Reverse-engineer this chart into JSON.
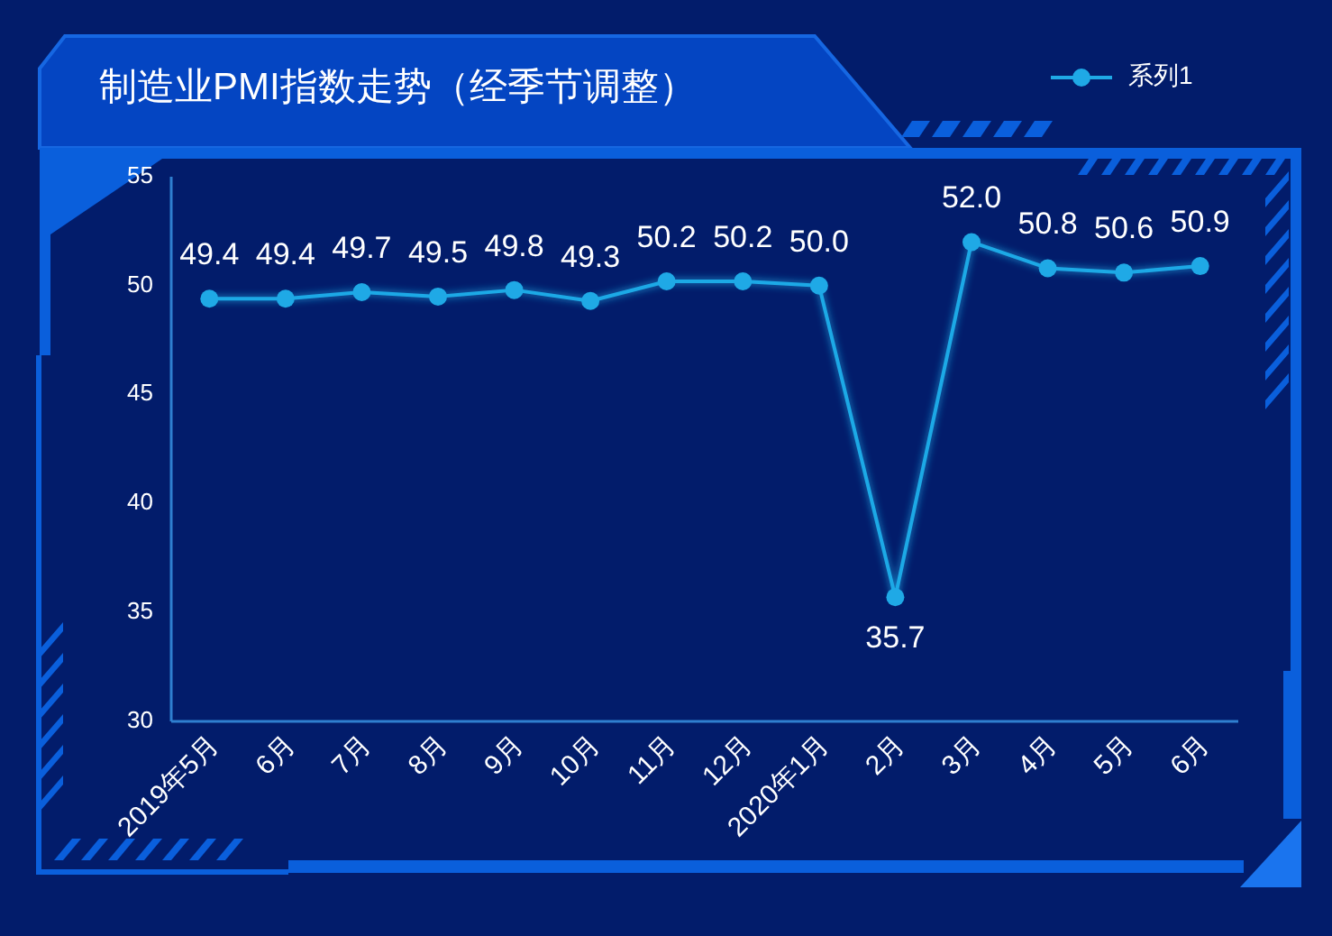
{
  "chart_data": {
    "type": "line",
    "title": "制造业PMI指数走势（经季节调整）",
    "categories": [
      "2019年5月",
      "6月",
      "7月",
      "8月",
      "9月",
      "10月",
      "11月",
      "12月",
      "2020年1月",
      "2月",
      "3月",
      "4月",
      "5月",
      "6月"
    ],
    "series": [
      {
        "name": "系列1",
        "color": "#1fa9e6",
        "values": [
          49.4,
          49.4,
          49.7,
          49.5,
          49.8,
          49.3,
          50.2,
          50.2,
          50.0,
          35.7,
          52.0,
          50.8,
          50.6,
          50.9
        ],
        "value_labels": [
          "49.4",
          "49.4",
          "49.7",
          "49.5",
          "49.8",
          "49.3",
          "50.2",
          "50.2",
          "50.0",
          "35.7",
          "52.0",
          "50.8",
          "50.6",
          "50.9"
        ]
      }
    ],
    "ylim": [
      30,
      55
    ],
    "yticks": [
      30,
      35,
      40,
      45,
      50,
      55
    ],
    "grid": false,
    "legend": "top right",
    "marker": "circle",
    "line_style": "solid"
  }
}
